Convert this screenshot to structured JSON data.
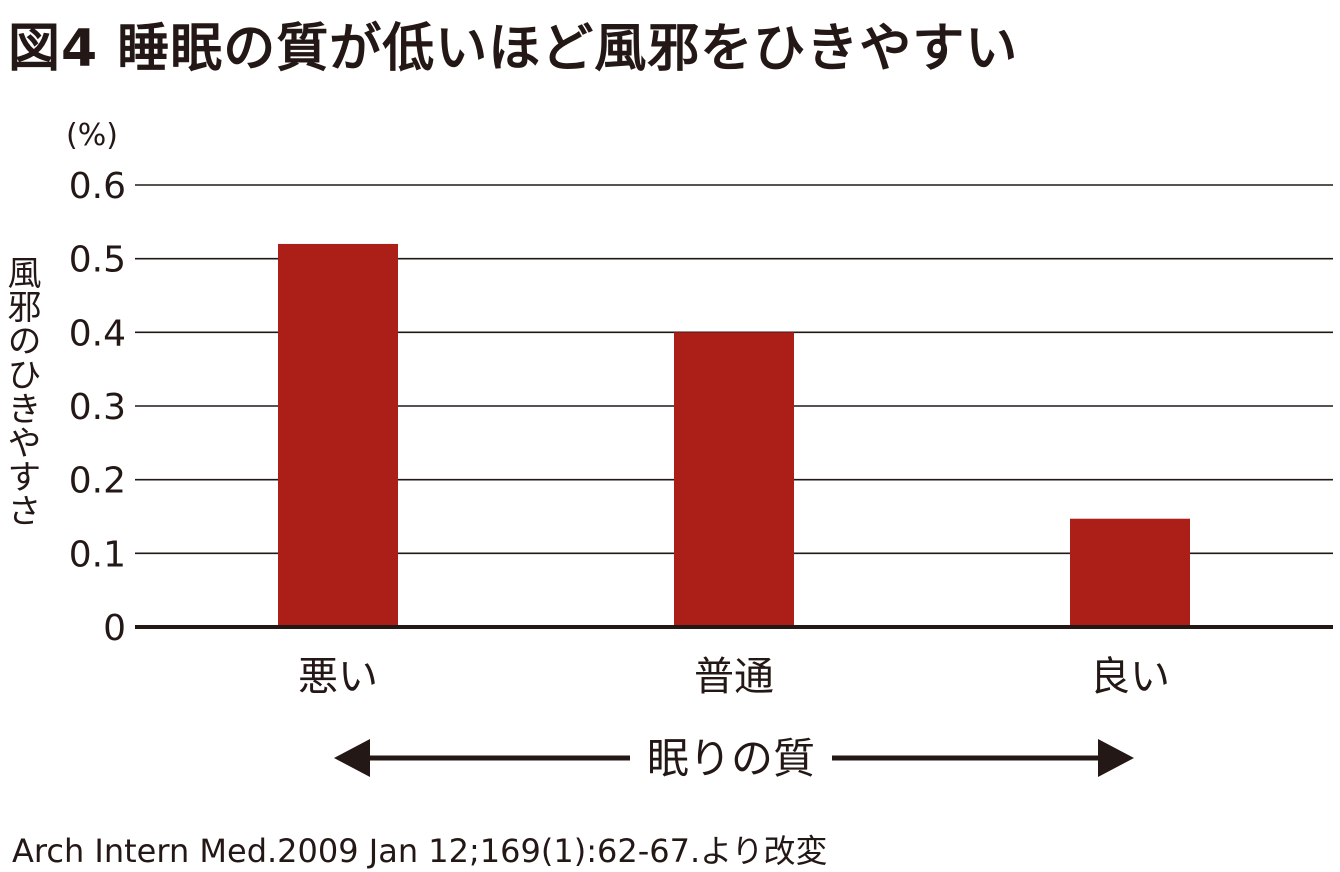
{
  "title": "図4 睡眠の質が低いほど風邪をひきやすい",
  "source": "Arch Intern Med.2009 Jan 12;169(1):62-67.より改変",
  "colors": {
    "bar": "#AC1F18",
    "text": "#231815",
    "grid": "#231815"
  },
  "chart_data": {
    "type": "bar",
    "title": "図4 睡眠の質が低いほど風邪をひきやすい",
    "ylabel": "風邪のひきやすさ",
    "yunit": "(%)",
    "xlabel": "眠りの質",
    "xlabel_arrow": "double-headed",
    "categories": [
      "悪い",
      "普通",
      "良い"
    ],
    "values": [
      0.52,
      0.4,
      0.147
    ],
    "ylim": [
      0,
      0.6
    ],
    "yticks": [
      "0",
      "0.1",
      "0.2",
      "0.3",
      "0.4",
      "0.5",
      "0.6"
    ],
    "grid": true,
    "legend": "none"
  }
}
